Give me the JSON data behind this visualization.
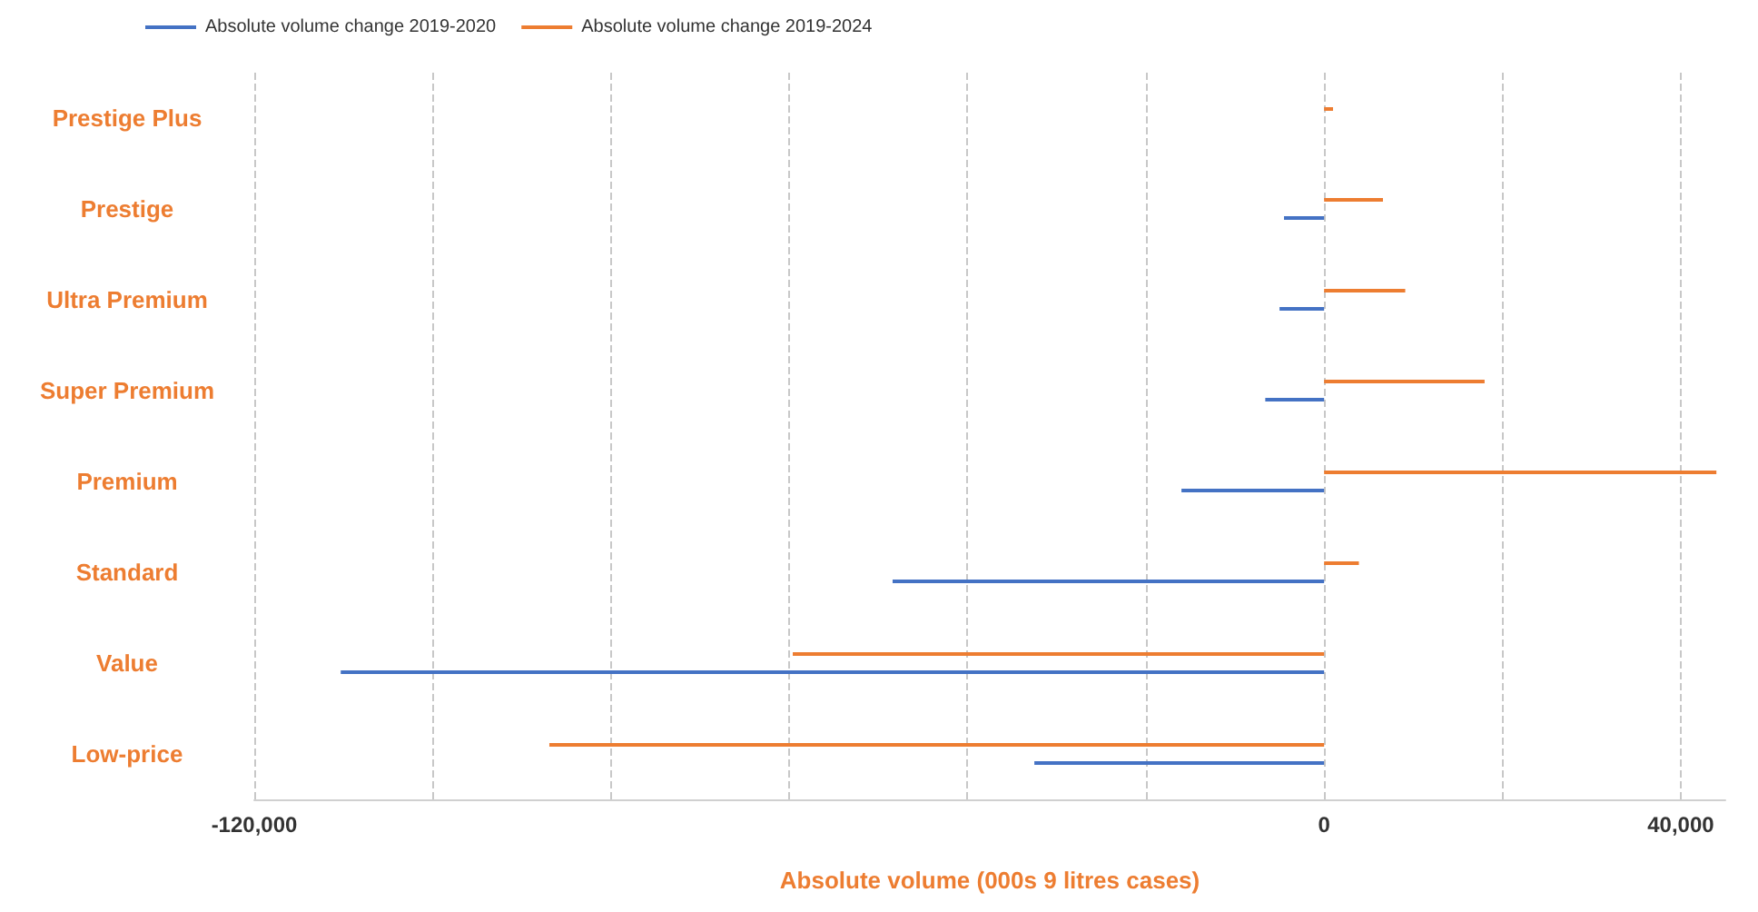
{
  "chart_data": {
    "type": "bar",
    "orientation": "horizontal",
    "categories": [
      "Prestige Plus",
      "Prestige",
      "Ultra Premium",
      "Super Premium",
      "Premium",
      "Standard",
      "Value",
      "Low-price"
    ],
    "series": [
      {
        "name": "Absolute volume change 2019-2020",
        "color": "#4472c4",
        "values": [
          null,
          -4500,
          -5000,
          -6600,
          -16000,
          -48400,
          -110300,
          -32500
        ]
      },
      {
        "name": "Absolute volume change 2019-2024",
        "color": "#ed7d31",
        "values": [
          1000,
          6600,
          9100,
          18000,
          44000,
          3900,
          -59600,
          -86900
        ]
      }
    ],
    "xlabel": "Absolute volume (000s 9 litres cases)",
    "xlim": [
      -120000,
      45000
    ],
    "xticks": [
      {
        "value": -120000,
        "label": "-120,000"
      },
      {
        "value": -100000,
        "label": null
      },
      {
        "value": -80000,
        "label": null
      },
      {
        "value": -60000,
        "label": null
      },
      {
        "value": -40000,
        "label": null
      },
      {
        "value": -20000,
        "label": null
      },
      {
        "value": 0,
        "label": "0"
      },
      {
        "value": 20000,
        "label": null
      },
      {
        "value": 40000,
        "label": "40,000"
      }
    ],
    "grid": "x",
    "legend": "top left"
  }
}
